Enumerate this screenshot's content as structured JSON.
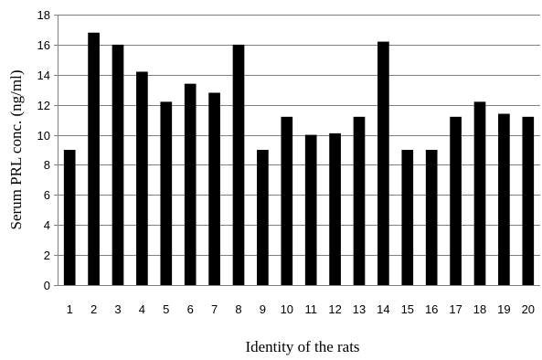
{
  "chart_data": {
    "type": "bar",
    "title": "",
    "xlabel": "Identity of the rats",
    "ylabel": "Serum PRL conc. (ng/ml)",
    "ylim": [
      0,
      18
    ],
    "ytick_step": 2,
    "grid": "horizontal",
    "legend": "none",
    "bar_color": "#000000",
    "grid_color": "#808080",
    "categories": [
      "1",
      "2",
      "3",
      "4",
      "5",
      "6",
      "7",
      "8",
      "9",
      "10",
      "11",
      "12",
      "13",
      "14",
      "15",
      "16",
      "17",
      "18",
      "19",
      "20"
    ],
    "values": [
      9.0,
      16.8,
      16.0,
      14.2,
      12.2,
      13.4,
      12.8,
      16.0,
      9.0,
      11.2,
      10.0,
      10.1,
      11.2,
      16.2,
      9.0,
      9.0,
      11.2,
      12.2,
      11.4,
      11.2
    ]
  }
}
